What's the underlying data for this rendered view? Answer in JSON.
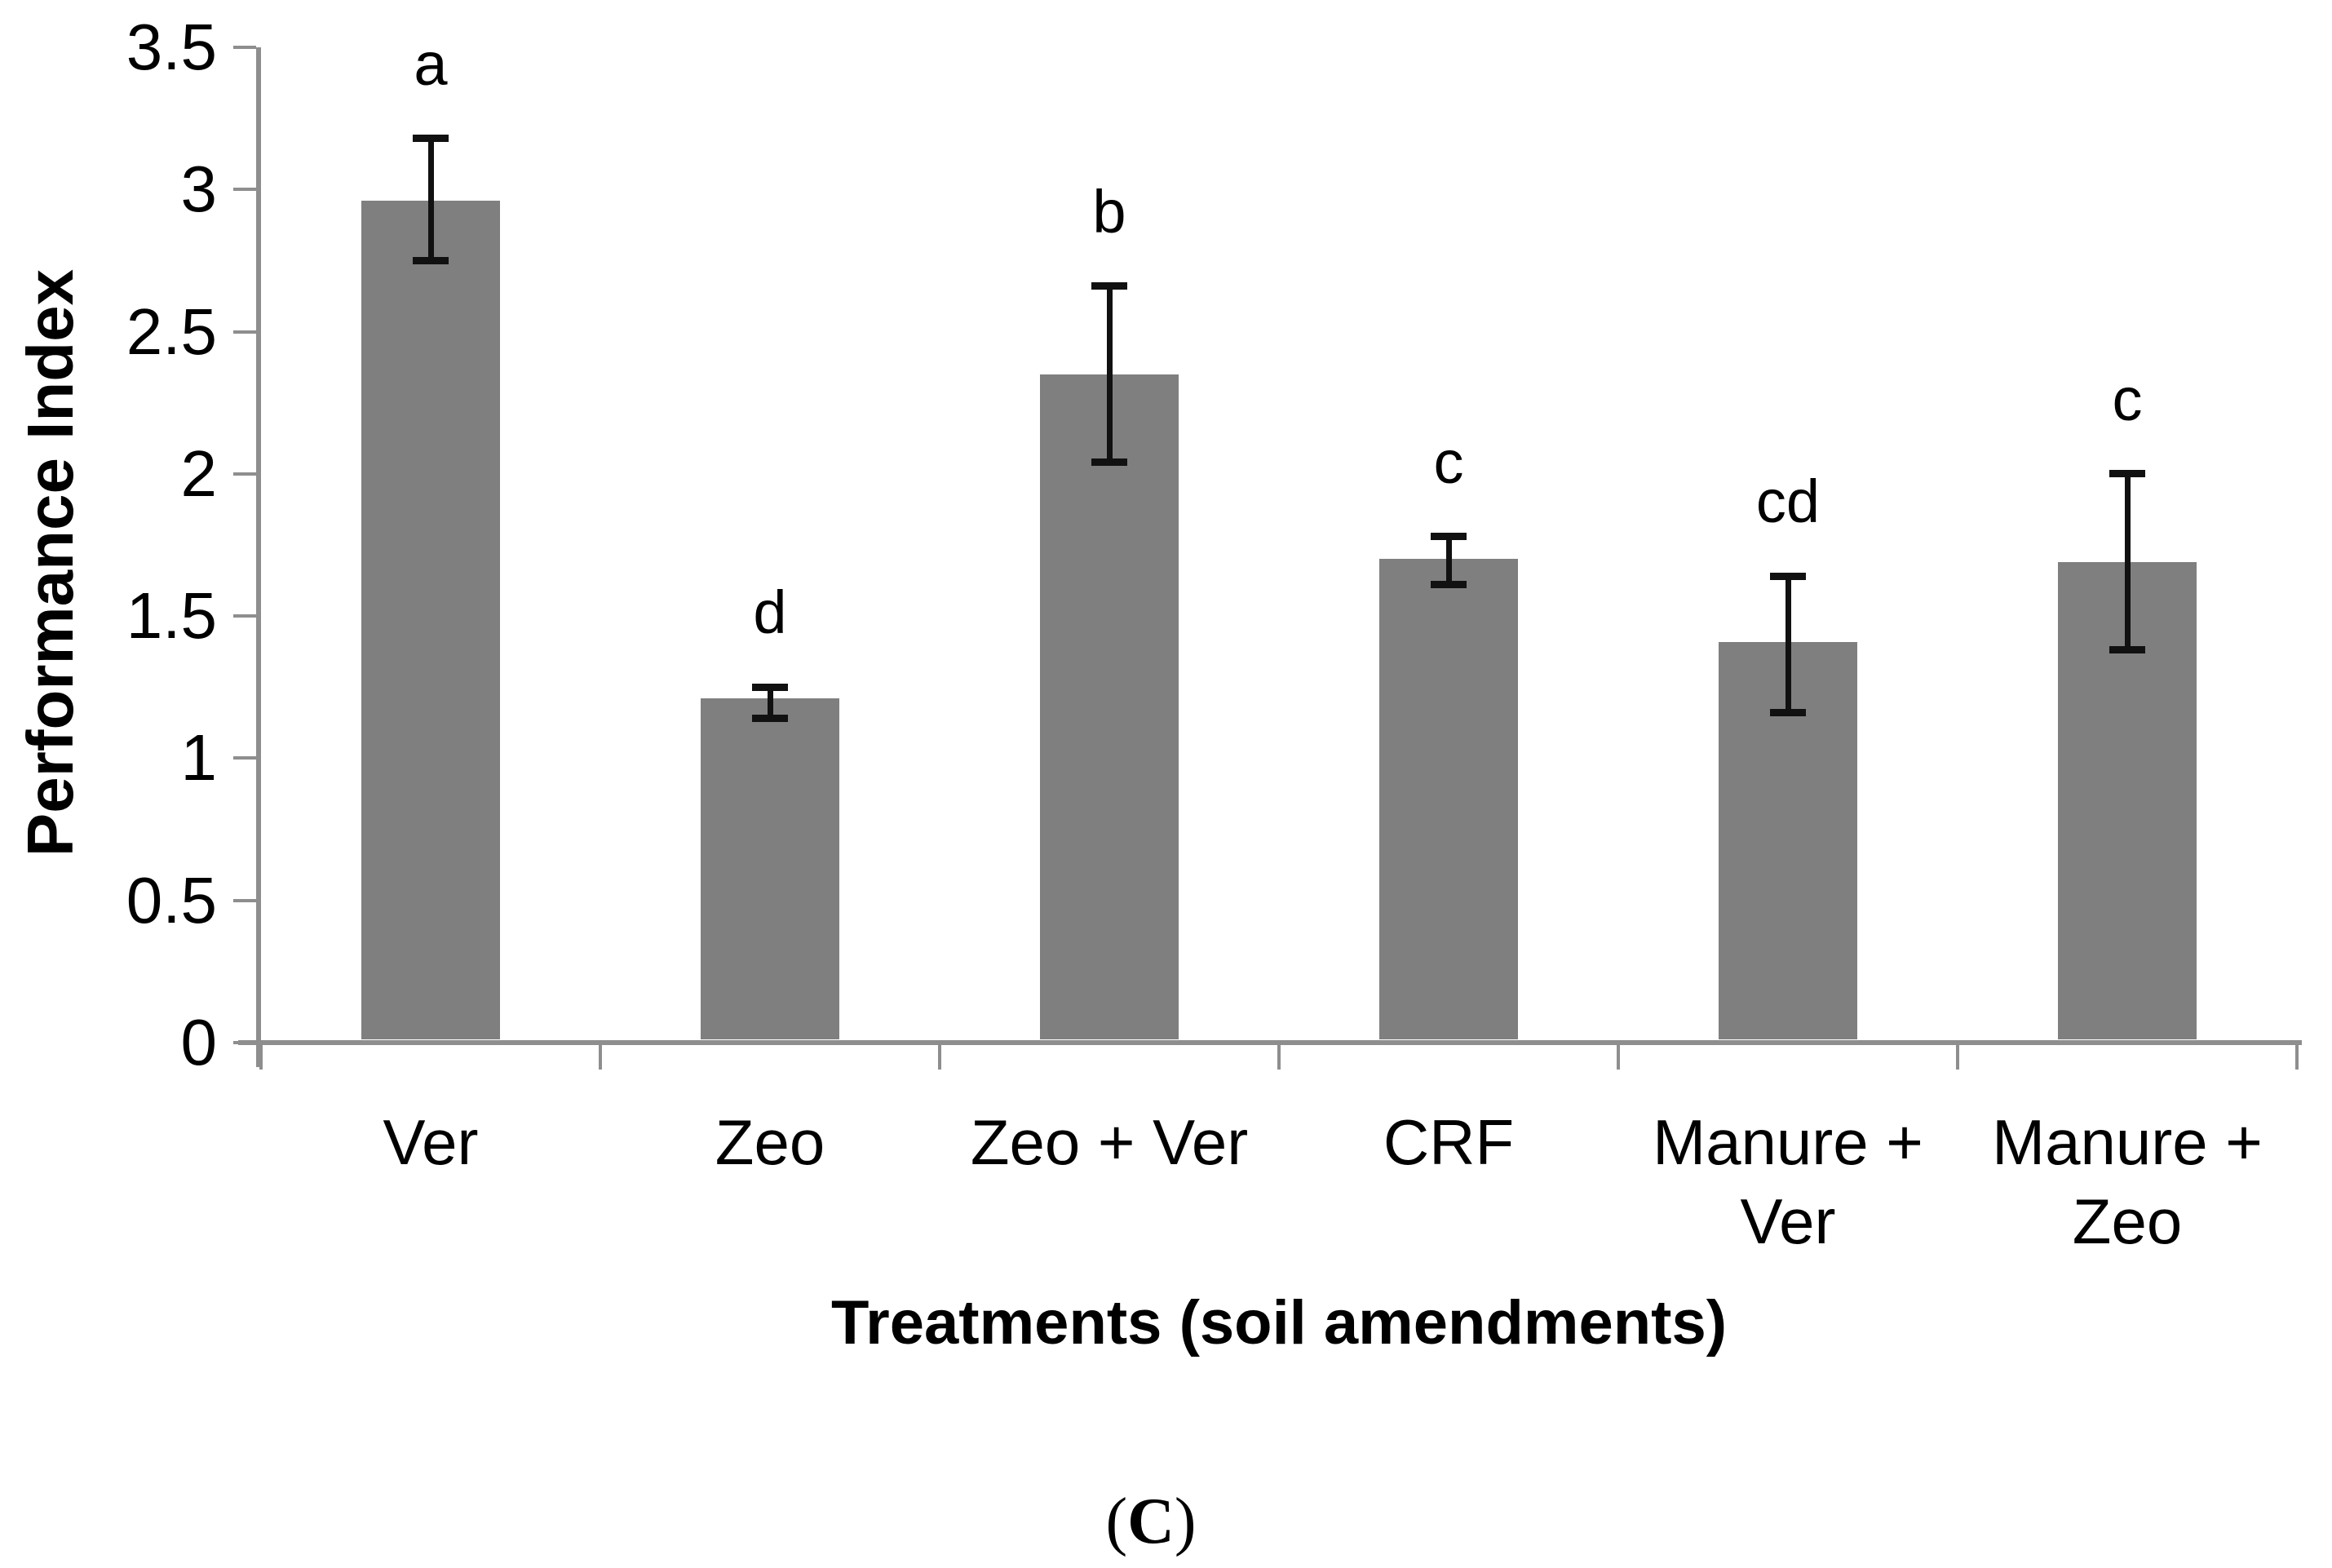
{
  "chart_data": {
    "type": "bar",
    "title": "",
    "xlabel": "Treatments (soil amendments)",
    "ylabel": "Performance Index",
    "ylim": [
      0,
      3.5
    ],
    "ytick_step": 0.5,
    "ytick_labels": [
      "0",
      "0.5",
      "1",
      "1.5",
      "2",
      "2.5",
      "3",
      "3.5"
    ],
    "categories": [
      [
        "Ver"
      ],
      [
        "Zeo"
      ],
      [
        "Zeo + Ver"
      ],
      [
        "CRF"
      ],
      [
        "Manure +",
        "Ver"
      ],
      [
        "Manure +",
        "Zeo"
      ]
    ],
    "values": [
      2.96,
      1.21,
      2.35,
      1.7,
      1.41,
      1.69
    ],
    "error_low": [
      2.75,
      1.14,
      2.04,
      1.61,
      1.16,
      1.38
    ],
    "error_high": [
      3.18,
      1.25,
      2.66,
      1.78,
      1.64,
      2.0
    ],
    "sig_letters": [
      "a",
      "d",
      "b",
      "c",
      "cd",
      "c"
    ],
    "bar_color": "#7f7f7f",
    "axis_color": "#8e8e8e",
    "error_color": "#111111",
    "grid": false,
    "legend": "none"
  },
  "caption": {
    "open": "(",
    "letter": "C",
    "close": ")"
  }
}
